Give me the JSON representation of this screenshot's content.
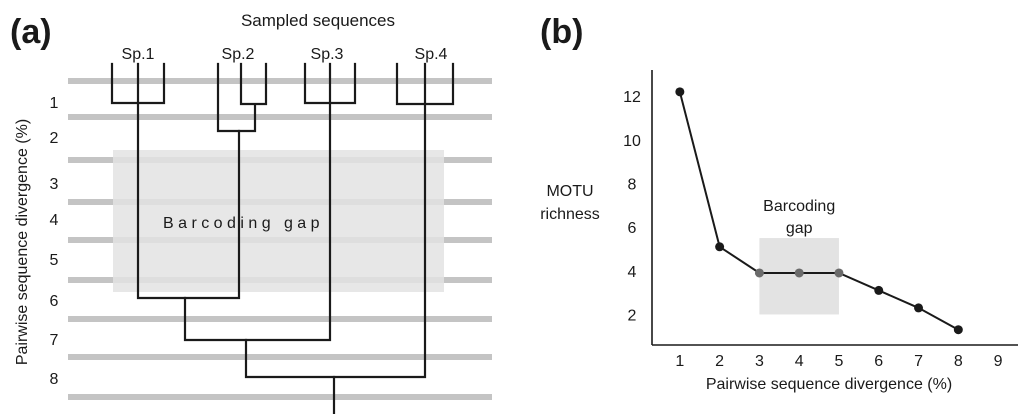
{
  "panel_a": {
    "label": "(a)",
    "top_title": "Sampled sequences",
    "species": [
      "Sp.1",
      "Sp.2",
      "Sp.3",
      "Sp.4"
    ],
    "y_axis_title": "Pairwise sequence divergence (%)",
    "levels": [
      "1",
      "2",
      "3",
      "4",
      "5",
      "6",
      "7",
      "8"
    ],
    "gap_label": "B a r c o d i n g   g a p"
  },
  "panel_b": {
    "label": "(b)",
    "y_label_line1": "MOTU",
    "y_label_line2": "richness",
    "gap_label_line1": "Barcoding",
    "gap_label_line2": "gap"
  },
  "chart_data": {
    "type": "line",
    "xlabel": "Pairwise sequence divergence (%)",
    "ylabel": "MOTU richness",
    "x_ticks": [
      1,
      2,
      3,
      4,
      5,
      6,
      7,
      8,
      9
    ],
    "y_ticks": [
      2,
      4,
      6,
      8,
      10,
      12
    ],
    "xlim": [
      0.3,
      9.5
    ],
    "ylim": [
      0.6,
      13.2
    ],
    "series": [
      {
        "x": [
          1,
          2,
          3,
          4,
          5,
          6,
          7,
          8
        ],
        "y": [
          12.2,
          5.1,
          3.9,
          3.9,
          3.9,
          3.1,
          2.3,
          1.3
        ]
      }
    ],
    "gap_points_x": [
      3,
      4,
      5
    ],
    "shaded_region": {
      "x": [
        3,
        5
      ],
      "y": [
        2,
        5.5
      ]
    },
    "colors": {
      "line": "#1a1a1a",
      "point": "#1a1a1a",
      "gap_point": "#6b6b6b",
      "shade": "#e3e3e3"
    }
  }
}
